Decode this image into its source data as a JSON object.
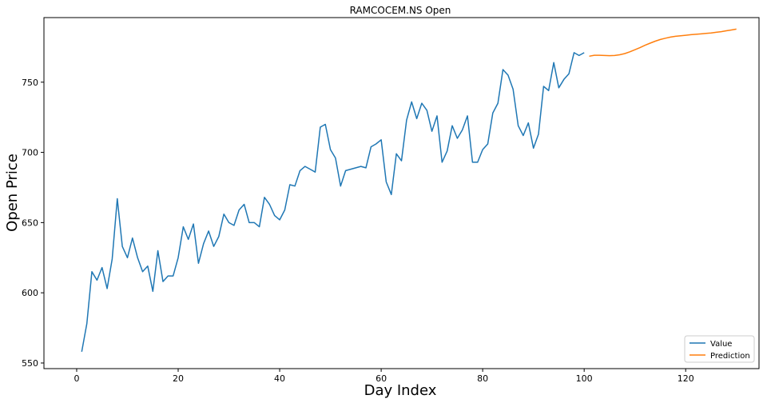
{
  "chart_data": {
    "type": "line",
    "title": "RAMCOCEM.NS Open",
    "xlabel": "Day Index",
    "ylabel": "Open Price",
    "xlim": [
      -6.45,
      134.45
    ],
    "ylim": [
      546,
      796
    ],
    "xticks": [
      0,
      20,
      40,
      60,
      80,
      100,
      120
    ],
    "yticks": [
      550,
      600,
      650,
      700,
      750
    ],
    "grid": false,
    "legend_position": "lower right",
    "series": [
      {
        "name": "Value",
        "color": "#1f77b4",
        "x": [
          1,
          2,
          3,
          4,
          5,
          6,
          7,
          8,
          9,
          10,
          11,
          12,
          13,
          14,
          15,
          16,
          17,
          18,
          19,
          20,
          21,
          22,
          23,
          24,
          25,
          26,
          27,
          28,
          29,
          30,
          31,
          32,
          33,
          34,
          35,
          36,
          37,
          38,
          39,
          40,
          41,
          42,
          43,
          44,
          45,
          46,
          47,
          48,
          49,
          50,
          51,
          52,
          53,
          54,
          55,
          56,
          57,
          58,
          59,
          60,
          61,
          62,
          63,
          64,
          65,
          66,
          67,
          68,
          69,
          70,
          71,
          72,
          73,
          74,
          75,
          76,
          77,
          78,
          79,
          80,
          81,
          82,
          83,
          84,
          85,
          86,
          87,
          88,
          89,
          90,
          91,
          92,
          93,
          94,
          95,
          96,
          97,
          98,
          99,
          100
        ],
        "values": [
          558,
          578,
          615,
          609,
          618,
          603,
          624,
          667,
          633,
          625,
          639,
          625,
          615,
          619,
          601,
          630,
          608,
          612,
          612,
          625,
          647,
          638,
          649,
          621,
          635,
          644,
          633,
          640,
          656,
          650,
          648,
          659,
          663,
          650,
          650,
          647,
          668,
          663,
          655,
          652,
          659,
          677,
          676,
          687,
          690,
          688,
          686,
          718,
          720,
          702,
          696,
          676,
          687,
          688,
          689,
          690,
          689,
          704,
          706,
          709,
          679,
          670,
          699,
          694,
          723,
          736,
          724,
          735,
          730,
          715,
          726,
          693,
          701,
          719,
          710,
          716,
          726,
          693,
          693,
          702,
          706,
          728,
          735,
          759,
          755,
          745,
          719,
          712,
          721,
          703,
          713,
          747,
          744,
          764,
          746,
          752,
          756,
          771,
          769,
          771
        ]
      },
      {
        "name": "Prediction",
        "color": "#ff7f0e",
        "x": [
          101,
          102,
          103,
          104,
          105,
          106,
          107,
          108,
          109,
          110,
          111,
          112,
          113,
          114,
          115,
          116,
          117,
          118,
          119,
          120,
          121,
          122,
          123,
          124,
          125,
          126,
          127,
          128,
          129,
          130
        ],
        "values": [
          768.5,
          769.2,
          769.2,
          769.0,
          768.9,
          769.0,
          769.5,
          770.4,
          771.6,
          773.1,
          774.6,
          776.3,
          777.8,
          779.2,
          780.4,
          781.3,
          782.1,
          782.7,
          783.1,
          783.4,
          783.8,
          784.1,
          784.4,
          784.7,
          785.0,
          785.5,
          786.0,
          786.6,
          787.2,
          787.8
        ]
      }
    ]
  }
}
